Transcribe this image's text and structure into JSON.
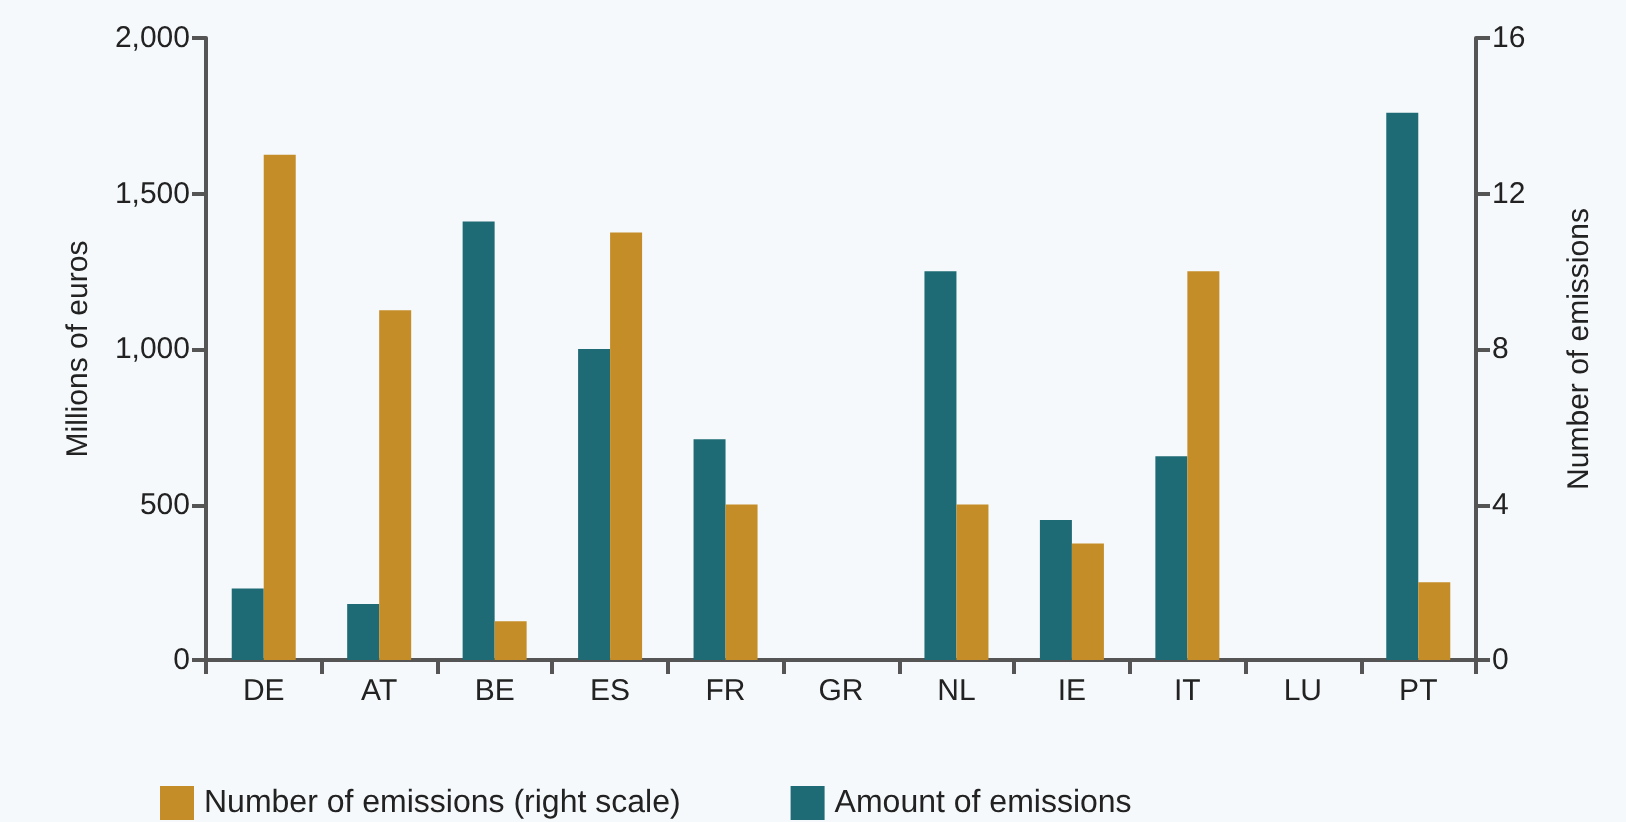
{
  "chart_data": {
    "type": "bar",
    "ylabel": "Millions of euros",
    "y2label": "Number of emissions",
    "categories": [
      "DE",
      "AT",
      "BE",
      "ES",
      "FR",
      "GR",
      "NL",
      "IE",
      "IT",
      "LU",
      "PT"
    ],
    "series": [
      {
        "name": "Amount of emissions",
        "color": "#1f6b75",
        "values": [
          230,
          180,
          1410,
          1000,
          710,
          null,
          1250,
          450,
          655,
          null,
          1760
        ]
      },
      {
        "name": "Number of emissions (right scale)",
        "color": "#c48d27",
        "axis": "y2",
        "values": [
          13,
          9,
          1,
          11,
          4,
          null,
          4,
          3,
          10,
          null,
          2
        ]
      }
    ],
    "ylim": [
      0,
      2000
    ],
    "yticks": [
      0,
      500,
      {
        "value": 1000,
        "label": "1,000"
      },
      {
        "value": 1500,
        "label": "1,500"
      },
      {
        "value": 2000,
        "label": "2,000"
      }
    ],
    "y2lim": [
      0,
      16
    ],
    "y2ticks": [
      0,
      4,
      8,
      12,
      16
    ],
    "grid": false,
    "legend": "bottom left"
  }
}
